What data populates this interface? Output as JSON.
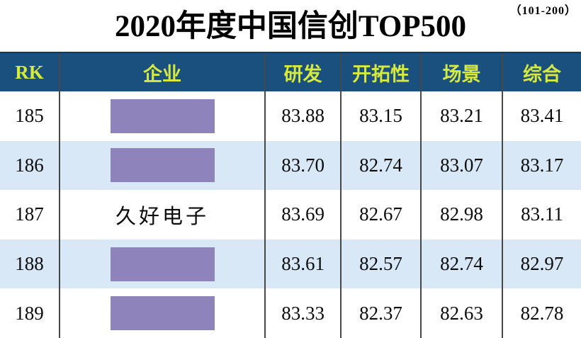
{
  "page": {
    "range_label": "（101-200）",
    "title": "2020年度中国信创TOP500"
  },
  "table": {
    "columns": [
      "RK",
      "企业",
      "研发",
      "开拓性",
      "场景",
      "综合"
    ],
    "rows": [
      {
        "rk": "185",
        "company": "",
        "company_hidden": true,
        "rd": "83.88",
        "pioneering": "83.15",
        "scenario": "83.21",
        "overall": "83.41"
      },
      {
        "rk": "186",
        "company": "",
        "company_hidden": true,
        "rd": "83.70",
        "pioneering": "82.74",
        "scenario": "83.07",
        "overall": "83.17"
      },
      {
        "rk": "187",
        "company": "久好电子",
        "company_hidden": false,
        "rd": "83.69",
        "pioneering": "82.67",
        "scenario": "82.98",
        "overall": "83.11"
      },
      {
        "rk": "188",
        "company": "",
        "company_hidden": true,
        "rd": "83.61",
        "pioneering": "82.57",
        "scenario": "82.74",
        "overall": "82.97"
      },
      {
        "rk": "189",
        "company": "",
        "company_hidden": true,
        "rd": "83.33",
        "pioneering": "82.37",
        "scenario": "82.63",
        "overall": "82.78"
      }
    ]
  },
  "colors": {
    "header_background": "#19507e",
    "header_text": "#d6e93e",
    "row_alt_background": "#d8e8f7",
    "row_background": "#ffffff",
    "redaction_box": "#8f83bc",
    "column_divider": "#474747",
    "body_text": "#0c0c0c"
  },
  "chart_data": {
    "type": "table",
    "title": "2020年度中国信创TOP500",
    "subtitle": "（101-200）",
    "columns": [
      "RK",
      "企业",
      "研发",
      "开拓性",
      "场景",
      "综合"
    ],
    "rows": [
      [
        "185",
        "",
        "83.88",
        "83.15",
        "83.21",
        "83.41"
      ],
      [
        "186",
        "",
        "83.70",
        "82.74",
        "83.07",
        "83.17"
      ],
      [
        "187",
        "久好电子",
        "83.69",
        "82.67",
        "82.98",
        "83.11"
      ],
      [
        "188",
        "",
        "83.61",
        "82.57",
        "82.74",
        "82.97"
      ],
      [
        "189",
        "",
        "83.33",
        "82.37",
        "82.63",
        "82.78"
      ]
    ],
    "notes": "Company names in rows 185, 186, 188, 189 are covered by purple redaction boxes in the image."
  }
}
